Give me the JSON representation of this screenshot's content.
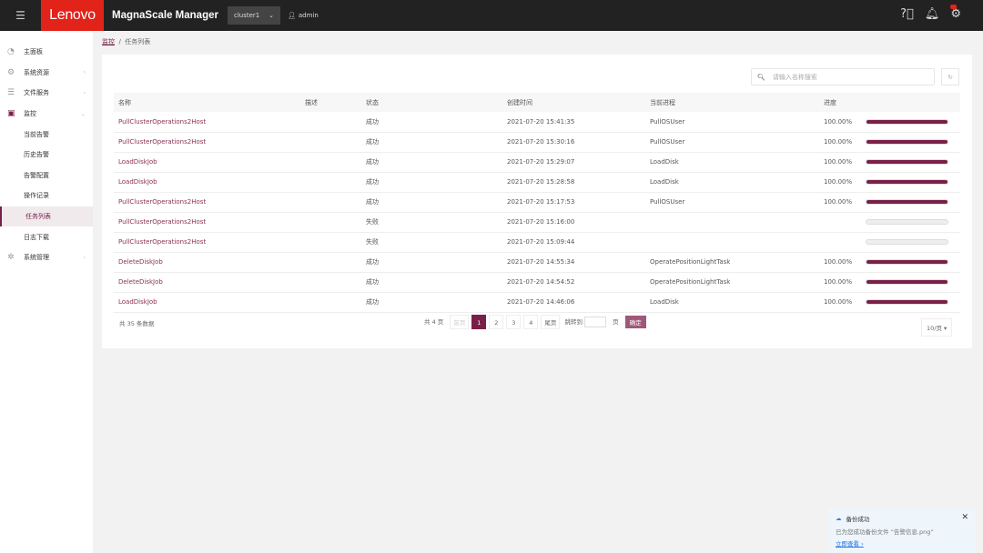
{
  "header": {
    "title": "MagnaScale Manager",
    "logo": "Lenovo",
    "cluster": "cluster1",
    "user": "admin"
  },
  "sidebar": {
    "items": [
      {
        "label": "主面板",
        "icon": "dashboard-icon",
        "chev": ""
      },
      {
        "label": "系统资源",
        "icon": "gear-icon",
        "chev": "›"
      },
      {
        "label": "文件服务",
        "icon": "file-icon",
        "chev": "›"
      },
      {
        "label": "监控",
        "icon": "monitor-icon",
        "chev": "⌄"
      },
      {
        "label": "当前告警",
        "sub": true
      },
      {
        "label": "历史告警",
        "sub": true
      },
      {
        "label": "告警配置",
        "sub": true
      },
      {
        "label": "操作记录",
        "sub": true
      },
      {
        "label": "任务列表",
        "sub": true,
        "active": true
      },
      {
        "label": "日志下载",
        "sub": true
      },
      {
        "label": "系统管理",
        "icon": "settings-icon",
        "chev": "›"
      }
    ]
  },
  "breadcrumb": {
    "parent": "监控",
    "sep": "/",
    "current": "任务列表"
  },
  "search": {
    "placeholder": "请输入名称搜索"
  },
  "table": {
    "headers": [
      "名称",
      "描述",
      "状态",
      "创建时间",
      "当前进程",
      "进度"
    ],
    "rows": [
      {
        "name": "PullClusterOperations2Host",
        "desc": "",
        "status": "成功",
        "created": "2021-07-20 15:41:35",
        "process": "PullOSUser",
        "progress_text": "100.00%",
        "progress": 100
      },
      {
        "name": "PullClusterOperations2Host",
        "desc": "",
        "status": "成功",
        "created": "2021-07-20 15:30:16",
        "process": "PullOSUser",
        "progress_text": "100.00%",
        "progress": 100
      },
      {
        "name": "LoadDiskJob",
        "desc": "",
        "status": "成功",
        "created": "2021-07-20 15:29:07",
        "process": "LoadDisk",
        "progress_text": "100.00%",
        "progress": 100
      },
      {
        "name": "LoadDiskJob",
        "desc": "",
        "status": "成功",
        "created": "2021-07-20 15:28:58",
        "process": "LoadDisk",
        "progress_text": "100.00%",
        "progress": 100
      },
      {
        "name": "PullClusterOperations2Host",
        "desc": "",
        "status": "成功",
        "created": "2021-07-20 15:17:53",
        "process": "PullOSUser",
        "progress_text": "100.00%",
        "progress": 100
      },
      {
        "name": "PullClusterOperations2Host",
        "desc": "",
        "status": "失败",
        "created": "2021-07-20 15:16:00",
        "process": "",
        "progress_text": "",
        "progress": 0
      },
      {
        "name": "PullClusterOperations2Host",
        "desc": "",
        "status": "失败",
        "created": "2021-07-20 15:09:44",
        "process": "",
        "progress_text": "",
        "progress": 0
      },
      {
        "name": "DeleteDiskJob",
        "desc": "",
        "status": "成功",
        "created": "2021-07-20 14:55:34",
        "process": "OperatePositionLightTask",
        "progress_text": "100.00%",
        "progress": 100
      },
      {
        "name": "DeleteDiskJob",
        "desc": "",
        "status": "成功",
        "created": "2021-07-20 14:54:52",
        "process": "OperatePositionLightTask",
        "progress_text": "100.00%",
        "progress": 100
      },
      {
        "name": "LoadDiskJob",
        "desc": "",
        "status": "成功",
        "created": "2021-07-20 14:46:06",
        "process": "LoadDisk",
        "progress_text": "100.00%",
        "progress": 100
      }
    ]
  },
  "pagination": {
    "total": "共 35 条数据",
    "pages_total": "共 4 页",
    "prev": "前页",
    "pages": [
      "1",
      "2",
      "3",
      "4"
    ],
    "current": "1",
    "next": "尾页",
    "jump_label": "跳转到",
    "page_unit": "页",
    "confirm": "确定",
    "page_size": "10/页 ▾"
  },
  "toast": {
    "title": "备份成功",
    "message": "已为您成功备份文件 “告警信息.png”",
    "link": "立即查看 ›"
  },
  "colors": {
    "accent": "#7a2048",
    "brand": "#e2231a"
  }
}
